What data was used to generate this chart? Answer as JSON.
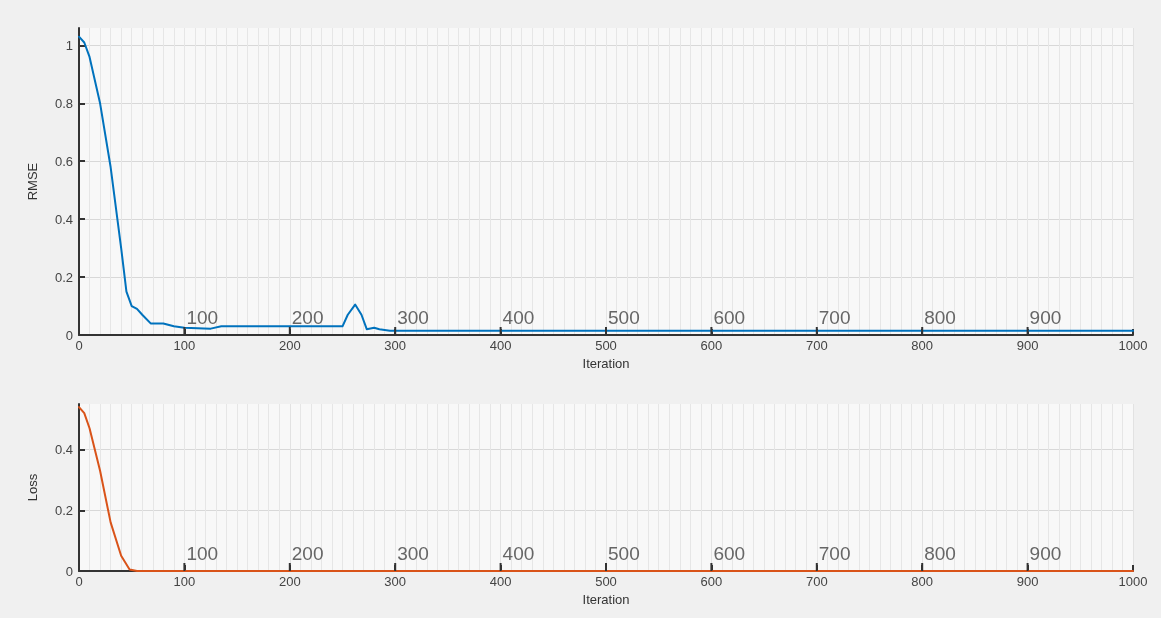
{
  "chart_data": [
    {
      "type": "line",
      "xlabel": "Iteration",
      "ylabel": "RMSE",
      "xlim": [
        0,
        1000
      ],
      "xticks": [
        0,
        100,
        200,
        300,
        400,
        500,
        600,
        700,
        800,
        900,
        1000
      ],
      "ylim": [
        0,
        1.06
      ],
      "yticks": [
        0,
        0.2,
        0.4,
        0.6,
        0.8,
        1
      ],
      "grid": true,
      "marker": "none",
      "line_style": "solid",
      "series": [
        {
          "color": "#0072bd",
          "x": [
            0,
            5,
            10,
            20,
            30,
            40,
            45,
            50,
            55,
            60,
            68,
            80,
            90,
            100,
            125,
            135,
            150,
            175,
            200,
            225,
            250,
            255,
            262,
            268,
            273,
            280,
            285,
            295,
            1000
          ],
          "values": [
            1.03,
            1.01,
            0.96,
            0.8,
            0.58,
            0.3,
            0.15,
            0.1,
            0.09,
            0.07,
            0.04,
            0.04,
            0.03,
            0.025,
            0.022,
            0.03,
            0.03,
            0.03,
            0.03,
            0.03,
            0.03,
            0.07,
            0.105,
            0.07,
            0.02,
            0.025,
            0.02,
            0.015,
            0.015
          ]
        }
      ],
      "annotations": [
        "100",
        "200",
        "300",
        "400",
        "500",
        "600",
        "700",
        "800",
        "900"
      ]
    },
    {
      "type": "line",
      "xlabel": "Iteration",
      "ylabel": "Loss",
      "xlim": [
        0,
        1000
      ],
      "xticks": [
        0,
        100,
        200,
        300,
        400,
        500,
        600,
        700,
        800,
        900,
        1000
      ],
      "ylim": [
        0,
        0.55
      ],
      "yticks": [
        0,
        0.2,
        0.4
      ],
      "grid": true,
      "marker": "none",
      "line_style": "solid",
      "series": [
        {
          "color": "#d95319",
          "x": [
            0,
            5,
            10,
            20,
            30,
            40,
            48,
            55,
            1000
          ],
          "values": [
            0.54,
            0.52,
            0.47,
            0.33,
            0.16,
            0.05,
            0.005,
            0,
            0
          ]
        }
      ],
      "annotations": [
        "100",
        "200",
        "300",
        "400",
        "500",
        "600",
        "700",
        "800",
        "900"
      ]
    }
  ]
}
